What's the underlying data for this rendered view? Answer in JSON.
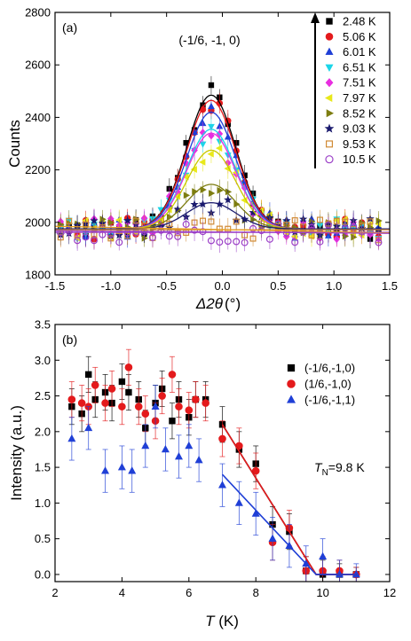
{
  "chart_data": [
    {
      "type": "scatter",
      "panel_label": "(a)",
      "annotation": "(-1/6, -1, 0)",
      "xlabel_symbol": "Δ2θ",
      "xlabel_unit": "(°)",
      "ylabel": "Counts",
      "xlim": [
        -1.5,
        1.5
      ],
      "ylim": [
        1800,
        2800
      ],
      "xticks": [
        -1.5,
        -1.0,
        -0.5,
        0.0,
        0.5,
        1.0,
        1.5
      ],
      "xtick_labels": [
        "-1.5",
        "-1.0",
        "-0.5",
        "0.0",
        "0.5",
        "1.0",
        "1.5"
      ],
      "yticks": [
        1800,
        2000,
        2200,
        2400,
        2600,
        2800
      ],
      "ytick_labels": [
        "1800",
        "2000",
        "2200",
        "2400",
        "2600",
        "2800"
      ],
      "legend_placement": "top-right",
      "series": [
        {
          "name": "2.48 K",
          "color": "#000000",
          "marker": "square-filled",
          "fit": {
            "base": 1975,
            "amp": 510,
            "center": -0.1,
            "sigma": 0.22
          }
        },
        {
          "name": "5.06 K",
          "color": "#e41a1c",
          "marker": "circle-filled",
          "fit": {
            "base": 1975,
            "amp": 490,
            "center": -0.1,
            "sigma": 0.22
          }
        },
        {
          "name": "6.01 K",
          "color": "#1f3fd6",
          "marker": "triangle-up-filled",
          "fit": {
            "base": 1975,
            "amp": 445,
            "center": -0.1,
            "sigma": 0.22
          }
        },
        {
          "name": "6.51 K",
          "color": "#1ad5e8",
          "marker": "triangle-down-filled",
          "fit": {
            "base": 1975,
            "amp": 380,
            "center": -0.1,
            "sigma": 0.22
          }
        },
        {
          "name": "7.51 K",
          "color": "#e82ee0",
          "marker": "diamond-filled",
          "fit": {
            "base": 1975,
            "amp": 365,
            "center": -0.1,
            "sigma": 0.22
          }
        },
        {
          "name": "7.97 K",
          "color": "#e8e81a",
          "marker": "triangle-left-filled",
          "fit": {
            "base": 1975,
            "amp": 300,
            "center": -0.1,
            "sigma": 0.22
          }
        },
        {
          "name": "8.52 K",
          "color": "#7d7d10",
          "marker": "triangle-right-filled",
          "fit": {
            "base": 1975,
            "amp": 170,
            "center": -0.1,
            "sigma": 0.22
          }
        },
        {
          "name": "9.03 K",
          "color": "#1a1a6e",
          "marker": "star-filled",
          "fit": {
            "base": 1975,
            "amp": 100,
            "center": -0.1,
            "sigma": 0.22
          }
        },
        {
          "name": "9.53 K",
          "color": "#d08a35",
          "marker": "square-open",
          "fit": {
            "base": 1972,
            "amp": 0,
            "center": -0.1,
            "sigma": 0.22
          }
        },
        {
          "name": "10.5 K",
          "color": "#9b3fc7",
          "marker": "circle-open",
          "fit": {
            "base": 1962,
            "amp": 0,
            "center": -0.1,
            "sigma": 0.22
          }
        }
      ],
      "baseline_fits": [
        {
          "color": "#e8a020",
          "y_start": 1985,
          "y_end": 1960
        },
        {
          "color": "#9b3fc7",
          "y_start": 1968,
          "y_end": 1958
        }
      ]
    },
    {
      "type": "scatter",
      "panel_label": "(b)",
      "annotation_main": "T",
      "annotation_sub": "N",
      "annotation_rest": "=9.8 K",
      "xlabel_symbol": "T",
      "xlabel_unit": " (K)",
      "ylabel": "Intensity (a.u.)",
      "xlim": [
        2,
        12
      ],
      "ylim": [
        -0.1,
        3.5
      ],
      "xticks": [
        2,
        4,
        6,
        8,
        10,
        12
      ],
      "xtick_labels": [
        "2",
        "4",
        "6",
        "8",
        "10",
        "12"
      ],
      "yticks": [
        0.0,
        0.5,
        1.0,
        1.5,
        2.0,
        2.5,
        3.0,
        3.5
      ],
      "ytick_labels": [
        "0.0",
        "0.5",
        "1.0",
        "1.5",
        "2.0",
        "2.5",
        "3.0",
        "3.5"
      ],
      "legend_placement": "top-right",
      "series": [
        {
          "name": "(-1/6,-1,0)",
          "color": "#000000",
          "marker": "square-filled",
          "x": [
            2.5,
            2.8,
            3.0,
            3.2,
            3.5,
            3.7,
            4.0,
            4.2,
            4.5,
            4.7,
            5.0,
            5.2,
            5.5,
            5.7,
            6.0,
            6.2,
            6.5,
            7.0,
            7.5,
            8.0,
            8.5,
            9.0,
            9.5,
            10.0,
            10.5,
            11.0
          ],
          "y": [
            2.35,
            2.25,
            2.8,
            2.45,
            2.55,
            2.4,
            2.7,
            2.55,
            2.45,
            2.05,
            2.4,
            2.6,
            2.15,
            2.45,
            2.2,
            2.45,
            2.45,
            2.1,
            1.75,
            1.55,
            0.7,
            0.6,
            0.05,
            0.0,
            0.0,
            0.0
          ],
          "err": [
            0.25,
            0.25,
            0.25,
            0.25,
            0.25,
            0.25,
            0.25,
            0.25,
            0.25,
            0.25,
            0.25,
            0.25,
            0.25,
            0.25,
            0.25,
            0.25,
            0.25,
            0.25,
            0.25,
            0.25,
            0.25,
            0.25,
            0.2,
            0.2,
            0.15,
            0.1
          ],
          "fit_line": {
            "x": [
              7.0,
              9.8,
              11.0
            ],
            "y": [
              2.1,
              0.0,
              0.0
            ]
          }
        },
        {
          "name": "(1/6,-1,0)",
          "color": "#e41a1c",
          "marker": "circle-filled",
          "x": [
            2.5,
            2.8,
            3.0,
            3.2,
            3.5,
            3.7,
            4.0,
            4.2,
            4.5,
            4.7,
            5.0,
            5.2,
            5.5,
            5.7,
            6.0,
            6.2,
            6.5,
            7.0,
            7.5,
            8.0,
            8.5,
            9.0,
            9.5,
            10.0,
            10.5,
            11.0
          ],
          "y": [
            2.45,
            2.4,
            2.35,
            2.65,
            2.4,
            2.6,
            2.35,
            2.9,
            2.35,
            2.25,
            2.15,
            2.5,
            2.8,
            2.35,
            2.3,
            2.45,
            2.4,
            1.9,
            1.8,
            1.45,
            0.45,
            0.65,
            0.05,
            0.05,
            0.05,
            0.0
          ],
          "err": [
            0.25,
            0.25,
            0.25,
            0.25,
            0.25,
            0.25,
            0.25,
            0.25,
            0.25,
            0.25,
            0.25,
            0.25,
            0.25,
            0.25,
            0.25,
            0.25,
            0.25,
            0.25,
            0.25,
            0.25,
            0.25,
            0.25,
            0.2,
            0.2,
            0.15,
            0.1
          ],
          "fit_line": {
            "x": [
              7.0,
              9.8,
              11.0
            ],
            "y": [
              2.1,
              0.0,
              0.0
            ]
          }
        },
        {
          "name": "(-1/6,-1,1)",
          "color": "#1f3fd6",
          "marker": "triangle-up-filled",
          "x": [
            2.5,
            3.0,
            3.5,
            4.0,
            4.3,
            4.7,
            5.0,
            5.3,
            5.7,
            6.0,
            6.3,
            7.0,
            7.5,
            8.0,
            8.5,
            9.0,
            9.5,
            10.0,
            10.5,
            11.0
          ],
          "y": [
            1.9,
            2.05,
            1.45,
            1.5,
            1.45,
            1.8,
            2.35,
            1.75,
            1.65,
            1.8,
            1.6,
            1.25,
            1.0,
            0.85,
            0.5,
            0.4,
            0.15,
            0.25,
            0.0,
            0.0
          ],
          "err": [
            0.3,
            0.3,
            0.3,
            0.3,
            0.3,
            0.3,
            0.3,
            0.3,
            0.3,
            0.3,
            0.3,
            0.3,
            0.3,
            0.3,
            0.3,
            0.3,
            0.25,
            0.25,
            0.2,
            0.15
          ],
          "fit_line": {
            "x": [
              7.0,
              9.8,
              11.0
            ],
            "y": [
              1.4,
              0.0,
              0.0
            ]
          }
        }
      ]
    }
  ]
}
